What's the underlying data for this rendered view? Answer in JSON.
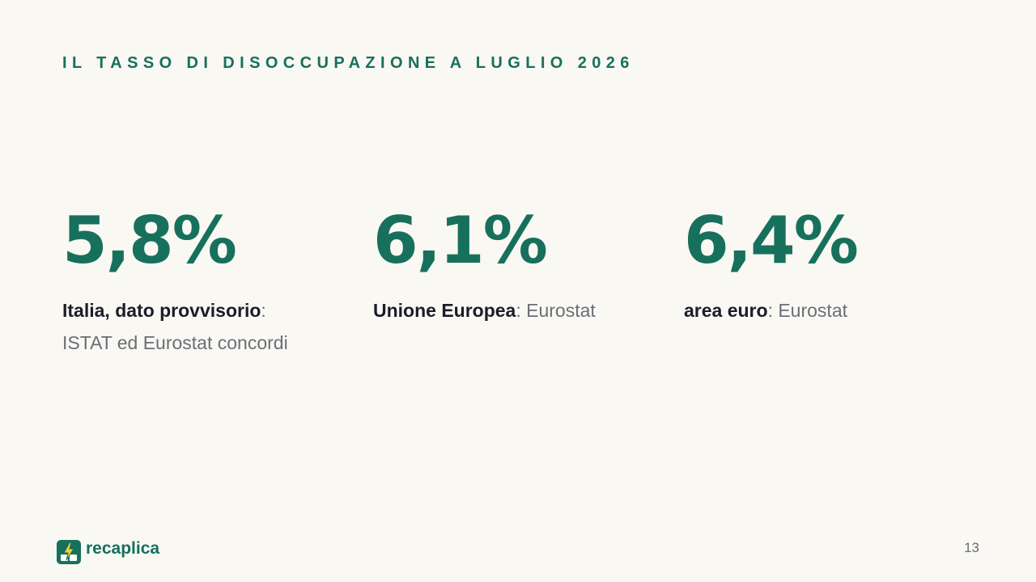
{
  "slide": {
    "title": "IL TASSO DI DISOCCUPAZIONE A LUGLIO 2026",
    "page_number": "13"
  },
  "stats": [
    {
      "value": "5,8%",
      "label": "Italia, dato provvisorio",
      "separator": ":",
      "note": "ISTAT ed Eurostat concordi"
    },
    {
      "value": "6,1%",
      "label": "Unione Europea",
      "separator": ": ",
      "note": "Eurostat"
    },
    {
      "value": "6,4%",
      "label": "area euro",
      "separator": ": ",
      "note": "Eurostat"
    }
  ],
  "brand": {
    "name": "recaplica",
    "icon": "lightning-book-icon",
    "primary_color": "#17705c",
    "accent_color": "#f3cf3c"
  }
}
